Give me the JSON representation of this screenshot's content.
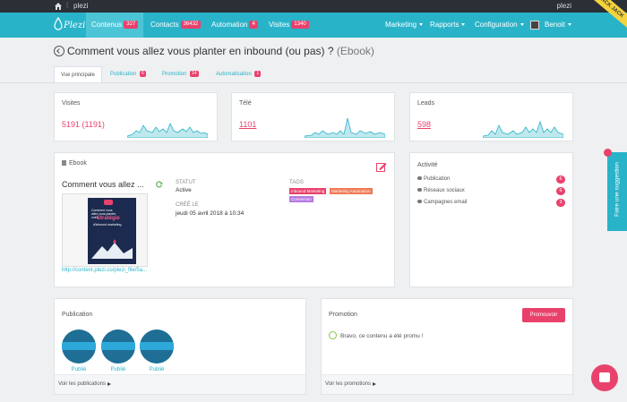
{
  "topbar": {
    "site": "plezi",
    "user_site": "plezi"
  },
  "nav": {
    "logo": "Plezi",
    "items": [
      {
        "label": "Contenus",
        "count": "327"
      },
      {
        "label": "Contacts",
        "count": "36432"
      },
      {
        "label": "Automation",
        "count": "4"
      },
      {
        "label": "Visites",
        "count": "1340"
      }
    ],
    "right": {
      "marketing": "Marketing",
      "rapports": "Rapports",
      "configuration": "Configuration",
      "user": "Benoit"
    },
    "ribbon": "JACK JACK"
  },
  "page": {
    "title": "Comment vous allez vous planter en inbound (ou pas) ?",
    "subtitle": "(Ebook)"
  },
  "tabs": [
    {
      "label": "Vue principale",
      "count": ""
    },
    {
      "label": "Publication",
      "count": "6"
    },
    {
      "label": "Promotion",
      "count": "14"
    },
    {
      "label": "Automatisation",
      "count": "1"
    }
  ],
  "stats": [
    {
      "label": "Visites",
      "value": "5191 (1191)"
    },
    {
      "label": "Télé",
      "value": "1101"
    },
    {
      "label": "Leads",
      "value": "598"
    }
  ],
  "ebook": {
    "header": "Ebook",
    "name": "Comment vous allez ...",
    "url": "http://content.plezi.co/plezi_file/5a...",
    "statut_label": "STATUT",
    "statut_value": "Active",
    "cree_label": "CRÉÉ LE",
    "cree_value": "jeudi 05 avril 2018 à 10:34",
    "tags_label": "TAGS",
    "tags": [
      {
        "label": "Inbound Marketing",
        "color": "#e8426c"
      },
      {
        "label": "Marketing Automation",
        "color": "#f07a55"
      },
      {
        "label": "Conversion",
        "color": "#b57be0"
      }
    ],
    "cover": {
      "line1": "Comment vous",
      "line1b": "allez vous planter",
      "line1c": "votre",
      "line2": "Stratégie",
      "line3": "d'inbound marketing"
    }
  },
  "activity": {
    "header": "Activité",
    "rows": [
      {
        "label": "Publication",
        "count": "6"
      },
      {
        "label": "Réseaux sociaux",
        "count": "6"
      },
      {
        "label": "Campagnes email",
        "count": "3"
      }
    ]
  },
  "publication": {
    "header": "Publication",
    "items": [
      {
        "label": "Publié"
      },
      {
        "label": "Publié"
      },
      {
        "label": "Publié"
      }
    ],
    "footer": "Voir les publications"
  },
  "promotion": {
    "header": "Promotion",
    "button": "Promouvoir",
    "message": "Bravo, ce contenu a été promu !",
    "footer": "Voir les promotions"
  },
  "suggestion": "Faire une suggestion",
  "colors": {
    "brand": "#29b3c9",
    "accent": "#e8426c",
    "topbar": "#2b2f36"
  }
}
